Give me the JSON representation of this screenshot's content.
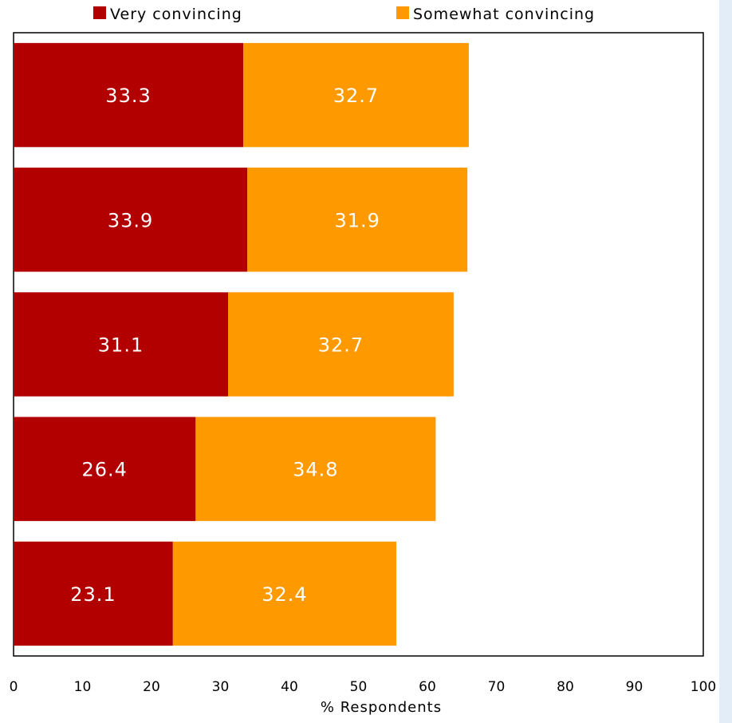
{
  "chart_data": {
    "type": "bar",
    "orientation": "horizontal",
    "stacked": true,
    "categories": [
      "",
      "",
      "",
      "",
      ""
    ],
    "series": [
      {
        "name": "Very convincing",
        "color": "#b20000",
        "values": [
          33.3,
          33.9,
          31.1,
          26.4,
          23.1
        ]
      },
      {
        "name": "Somewhat convincing",
        "color": "#ff9900",
        "values": [
          32.7,
          31.9,
          32.7,
          34.8,
          32.4
        ]
      }
    ],
    "title": "",
    "xlabel": "% Respondents",
    "ylabel": "",
    "xlim": [
      0,
      100
    ],
    "xticks": [
      0,
      10,
      20,
      30,
      40,
      50,
      60,
      70,
      80,
      90,
      100
    ],
    "grid": false,
    "legend": "top"
  }
}
